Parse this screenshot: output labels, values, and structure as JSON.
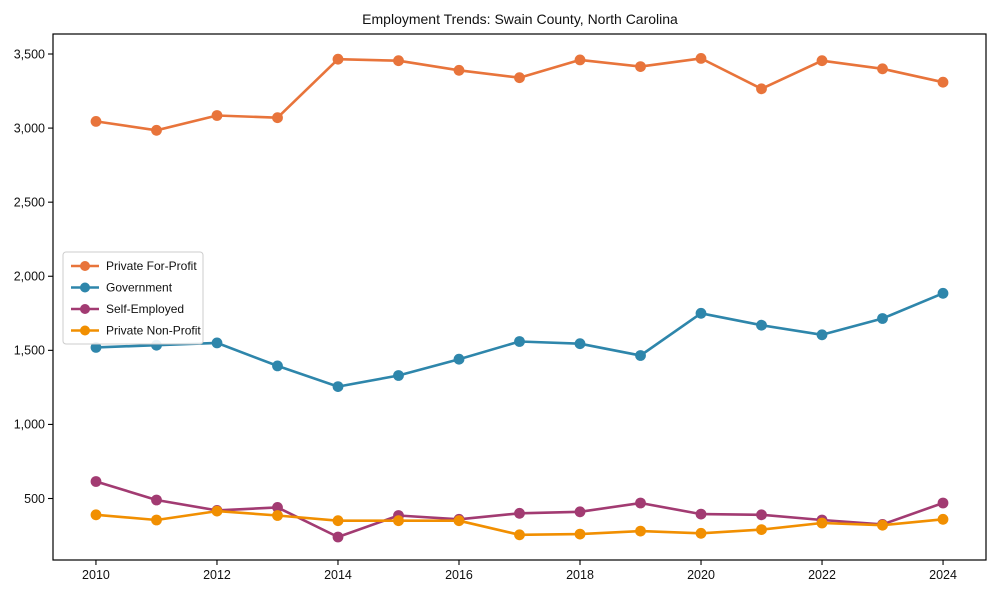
{
  "chart_data": {
    "type": "line",
    "title": "Employment Trends: Swain County, North Carolina",
    "xlabel": "",
    "ylabel": "",
    "x": [
      2010,
      2011,
      2012,
      2013,
      2014,
      2015,
      2016,
      2017,
      2018,
      2019,
      2020,
      2021,
      2022,
      2023,
      2024
    ],
    "x_ticks": [
      2010,
      2012,
      2014,
      2016,
      2018,
      2020,
      2022,
      2024
    ],
    "x_tick_labels": [
      "2010",
      "2012",
      "2014",
      "2016",
      "2018",
      "2020",
      "2022",
      "2024"
    ],
    "y_ticks": [
      500,
      1000,
      1500,
      2000,
      2500,
      3000,
      3500
    ],
    "y_tick_labels": [
      "500",
      "1,000",
      "1,500",
      "2,000",
      "2,500",
      "3,000",
      "3,500"
    ],
    "xlim": [
      2009.29,
      2024.71
    ],
    "ylim": [
      85,
      3635
    ],
    "grid": false,
    "legend_position": "center-left",
    "marker": "circle",
    "series": [
      {
        "name": "Private For-Profit",
        "color": "#E8743B",
        "values": [
          3045,
          2985,
          3085,
          3070,
          3465,
          3455,
          3390,
          3340,
          3460,
          3415,
          3470,
          3265,
          3455,
          3400,
          3310
        ]
      },
      {
        "name": "Government",
        "color": "#2E86AB",
        "values": [
          1520,
          1535,
          1550,
          1395,
          1255,
          1330,
          1440,
          1560,
          1545,
          1465,
          1750,
          1670,
          1605,
          1715,
          1885
        ]
      },
      {
        "name": "Self-Employed",
        "color": "#A23B72",
        "values": [
          615,
          490,
          420,
          440,
          240,
          385,
          360,
          400,
          410,
          470,
          395,
          390,
          355,
          325,
          470
        ]
      },
      {
        "name": "Private Non-Profit",
        "color": "#F18F01",
        "values": [
          390,
          355,
          415,
          385,
          350,
          350,
          350,
          255,
          260,
          280,
          265,
          290,
          335,
          320,
          360
        ]
      }
    ],
    "colors": {
      "frame": "#000000",
      "legend_border": "#cccccc",
      "background": "#ffffff"
    }
  }
}
